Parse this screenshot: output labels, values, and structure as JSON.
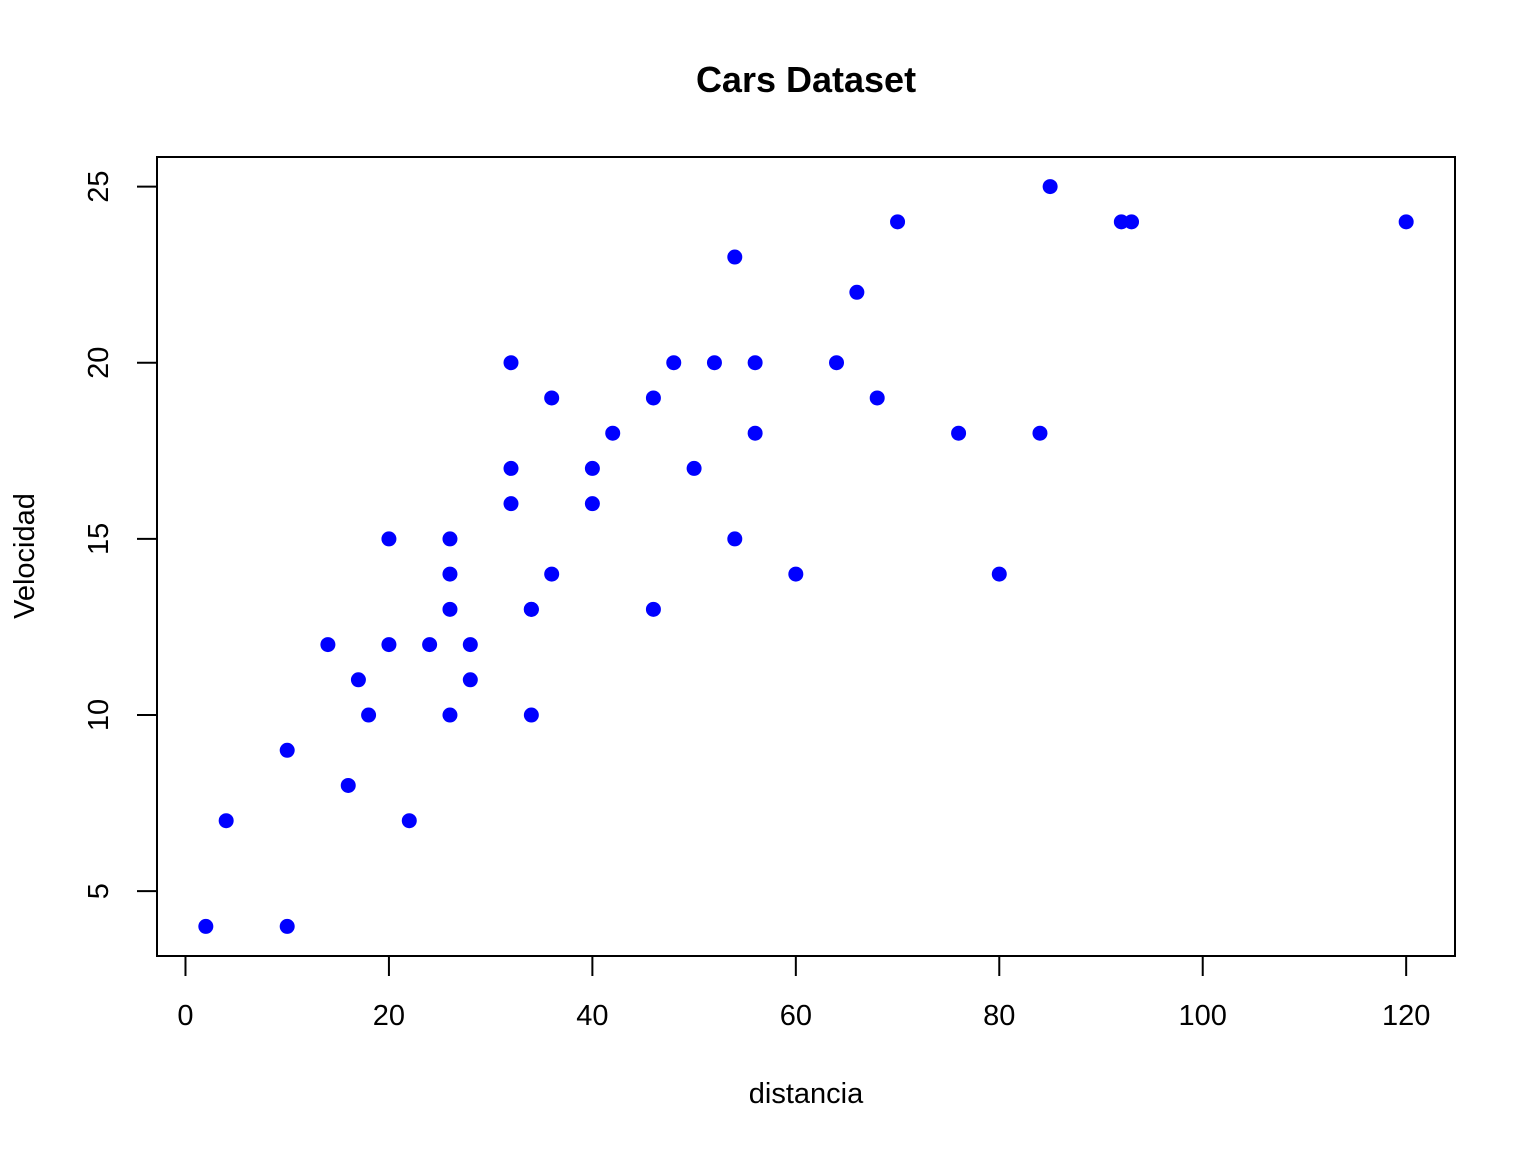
{
  "chart_data": {
    "type": "scatter",
    "title": "Cars Dataset",
    "xlabel": "distancia",
    "ylabel": "Velocidad",
    "xlim": [
      -2.8,
      124.8
    ],
    "ylim": [
      3.16,
      25.84
    ],
    "x_ticks": [
      0,
      20,
      40,
      60,
      80,
      100,
      120
    ],
    "y_ticks": [
      5,
      10,
      15,
      20,
      25
    ],
    "x_tick_labels": [
      "0",
      "20",
      "40",
      "60",
      "80",
      "100",
      "120"
    ],
    "y_tick_labels": [
      "5",
      "10",
      "15",
      "20",
      "25"
    ],
    "grid": false,
    "legend": "none",
    "point_color": "#0000ff",
    "series": [
      {
        "points": [
          {
            "x": 2,
            "y": 4
          },
          {
            "x": 10,
            "y": 4
          },
          {
            "x": 4,
            "y": 7
          },
          {
            "x": 22,
            "y": 7
          },
          {
            "x": 16,
            "y": 8
          },
          {
            "x": 10,
            "y": 9
          },
          {
            "x": 18,
            "y": 10
          },
          {
            "x": 26,
            "y": 10
          },
          {
            "x": 34,
            "y": 10
          },
          {
            "x": 17,
            "y": 11
          },
          {
            "x": 28,
            "y": 11
          },
          {
            "x": 14,
            "y": 12
          },
          {
            "x": 20,
            "y": 12
          },
          {
            "x": 24,
            "y": 12
          },
          {
            "x": 28,
            "y": 12
          },
          {
            "x": 26,
            "y": 13
          },
          {
            "x": 34,
            "y": 13
          },
          {
            "x": 34,
            "y": 13
          },
          {
            "x": 46,
            "y": 13
          },
          {
            "x": 26,
            "y": 14
          },
          {
            "x": 36,
            "y": 14
          },
          {
            "x": 60,
            "y": 14
          },
          {
            "x": 80,
            "y": 14
          },
          {
            "x": 20,
            "y": 15
          },
          {
            "x": 26,
            "y": 15
          },
          {
            "x": 54,
            "y": 15
          },
          {
            "x": 32,
            "y": 16
          },
          {
            "x": 40,
            "y": 16
          },
          {
            "x": 32,
            "y": 17
          },
          {
            "x": 40,
            "y": 17
          },
          {
            "x": 50,
            "y": 17
          },
          {
            "x": 42,
            "y": 18
          },
          {
            "x": 56,
            "y": 18
          },
          {
            "x": 76,
            "y": 18
          },
          {
            "x": 84,
            "y": 18
          },
          {
            "x": 36,
            "y": 19
          },
          {
            "x": 46,
            "y": 19
          },
          {
            "x": 68,
            "y": 19
          },
          {
            "x": 32,
            "y": 20
          },
          {
            "x": 48,
            "y": 20
          },
          {
            "x": 52,
            "y": 20
          },
          {
            "x": 56,
            "y": 20
          },
          {
            "x": 64,
            "y": 20
          },
          {
            "x": 66,
            "y": 22
          },
          {
            "x": 54,
            "y": 23
          },
          {
            "x": 70,
            "y": 24
          },
          {
            "x": 92,
            "y": 24
          },
          {
            "x": 93,
            "y": 24
          },
          {
            "x": 120,
            "y": 24
          },
          {
            "x": 85,
            "y": 25
          }
        ]
      }
    ]
  }
}
